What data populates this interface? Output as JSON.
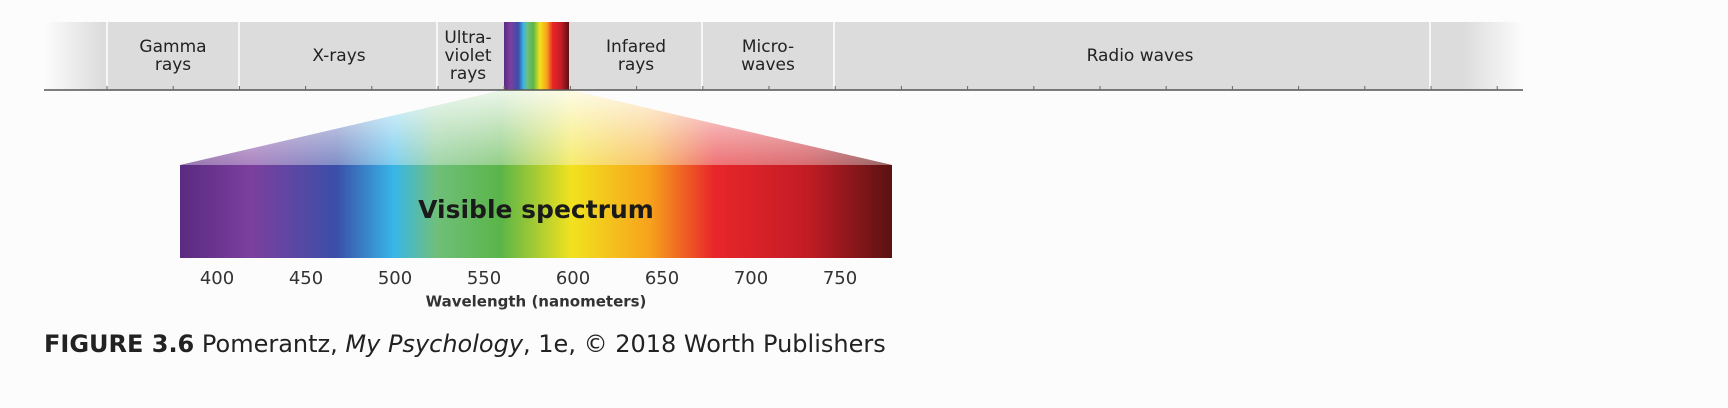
{
  "header": {
    "bands": [
      {
        "lines": [
          "Gamma",
          "rays"
        ]
      },
      {
        "lines": [
          "X-rays"
        ]
      },
      {
        "lines": [
          "Ultra-",
          "violet",
          "rays"
        ]
      },
      {
        "lines": [
          "Infared",
          "rays"
        ]
      },
      {
        "lines": [
          "Micro-",
          "waves"
        ]
      },
      {
        "lines": [
          "Radio waves"
        ]
      }
    ]
  },
  "spectrum": {
    "label": "Visible spectrum",
    "ticks": [
      400,
      450,
      500,
      550,
      600,
      650,
      700,
      750
    ],
    "axis_label": "Wavelength (nanometers)"
  },
  "caption": {
    "figure": "FIGURE 3.6",
    "author": "Pomerantz,",
    "book": "My Psychology",
    "rest": ", 1e, © 2018 Worth Publishers"
  }
}
